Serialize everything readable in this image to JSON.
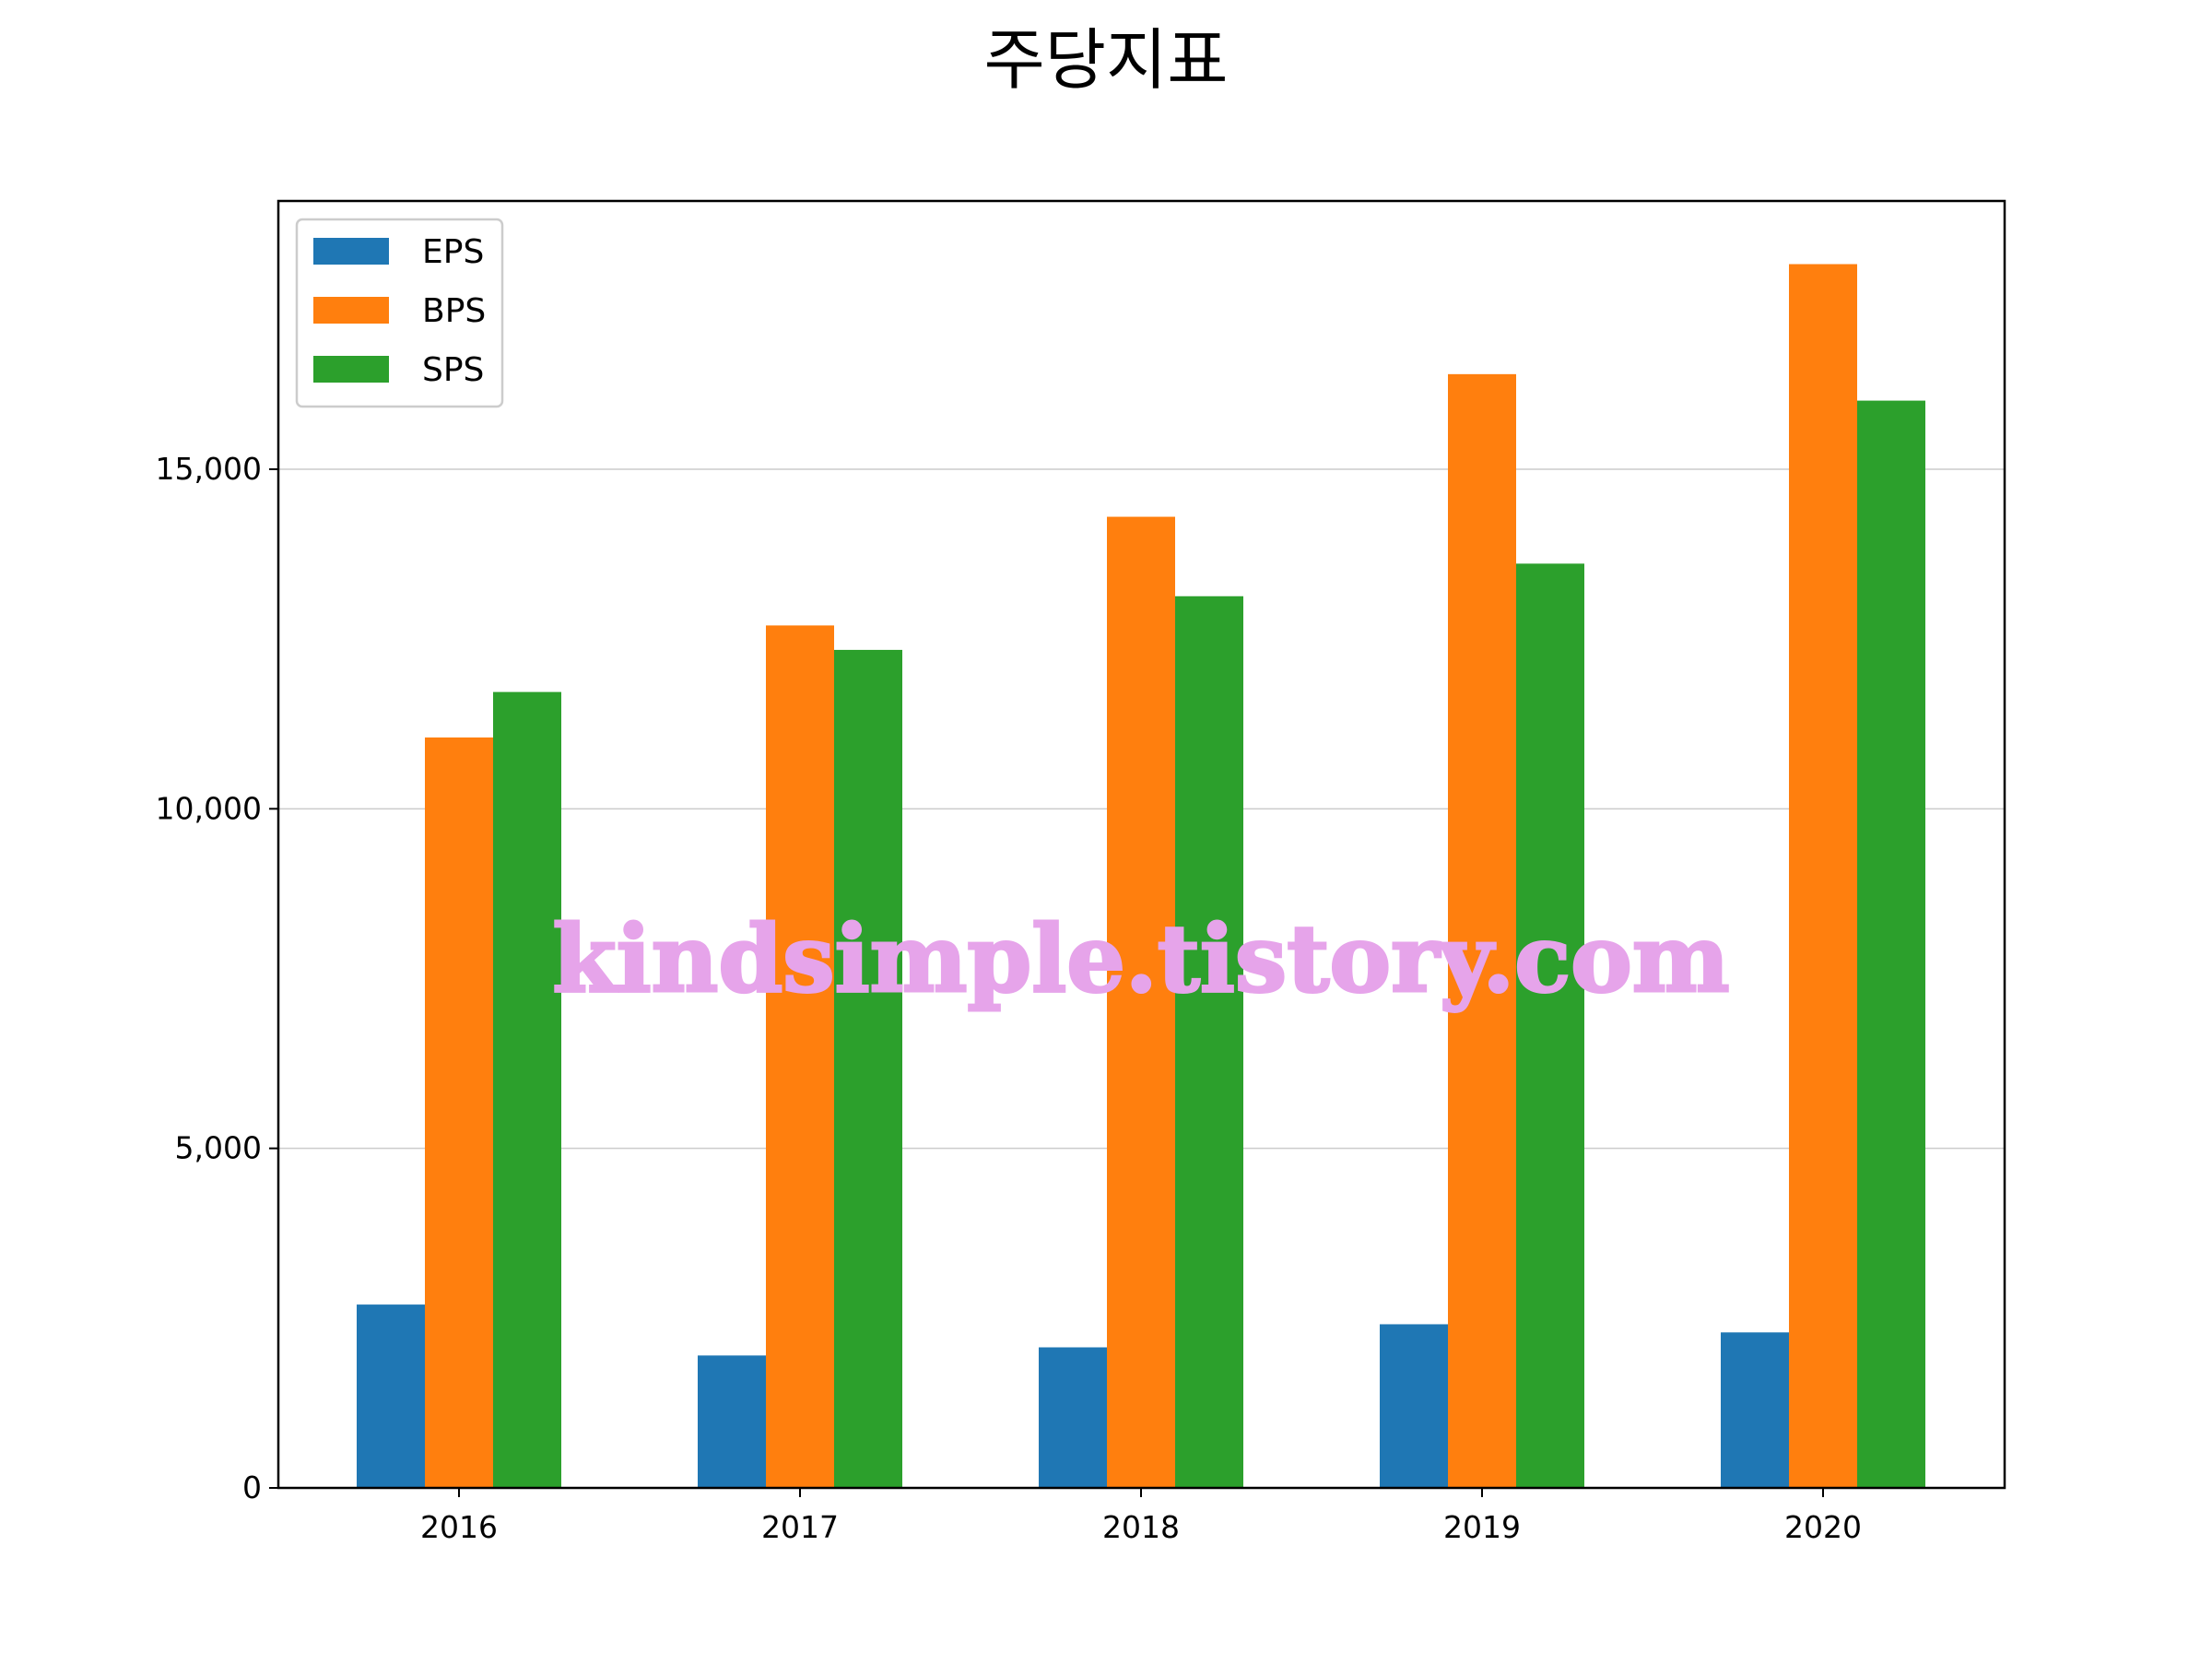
{
  "chart_data": {
    "type": "bar",
    "title": "주당지표",
    "xlabel": "",
    "ylabel": "",
    "categories": [
      "2016",
      "2017",
      "2018",
      "2019",
      "2020"
    ],
    "series": [
      {
        "name": "EPS",
        "color": "#1f77b4",
        "values": [
          2700,
          1950,
          2070,
          2410,
          2290
        ]
      },
      {
        "name": "BPS",
        "color": "#ff7f0e",
        "values": [
          11050,
          12700,
          14300,
          16400,
          18020
        ]
      },
      {
        "name": "SPS",
        "color": "#2ca02c",
        "values": [
          11720,
          12340,
          13130,
          13610,
          16010
        ]
      }
    ],
    "ylim": [
      0,
      18950
    ],
    "yticks": [
      0,
      5000,
      10000,
      15000
    ],
    "ytick_labels": [
      "0",
      "5,000",
      "10,000",
      "15,000"
    ],
    "grid": "horizontal",
    "legend_position": "top-left"
  },
  "watermark": "kindsimple.tistory.com"
}
